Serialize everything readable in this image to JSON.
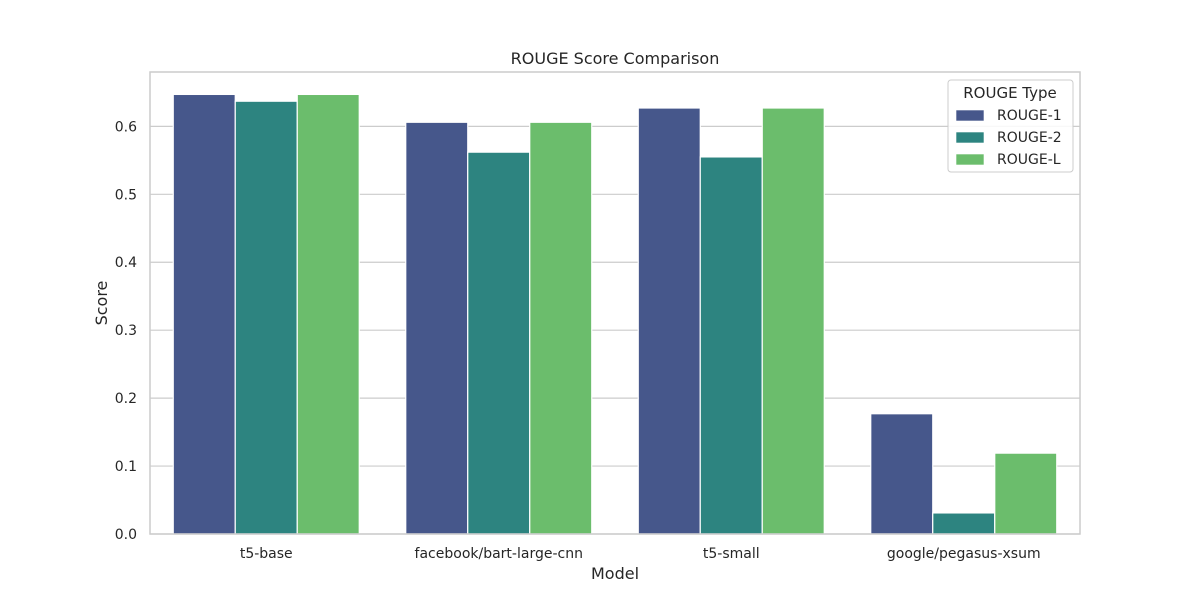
{
  "chart_data": {
    "type": "bar",
    "title": "ROUGE Score Comparison",
    "xlabel": "Model",
    "ylabel": "Score",
    "categories": [
      "t5-base",
      "facebook/bart-large-cnn",
      "t5-small",
      "google/pegasus-xsum"
    ],
    "series": [
      {
        "name": "ROUGE-1",
        "color": "#46578b",
        "values": [
          0.647,
          0.606,
          0.627,
          0.177
        ]
      },
      {
        "name": "ROUGE-2",
        "color": "#2d8480",
        "values": [
          0.637,
          0.562,
          0.555,
          0.031
        ]
      },
      {
        "name": "ROUGE-L",
        "color": "#6bbd6c",
        "values": [
          0.647,
          0.606,
          0.627,
          0.119
        ]
      }
    ],
    "ylim": [
      0,
      0.68
    ],
    "yticks": [
      0.0,
      0.1,
      0.2,
      0.3,
      0.4,
      0.5,
      0.6
    ],
    "ytick_labels": [
      "0.0",
      "0.1",
      "0.2",
      "0.3",
      "0.4",
      "0.5",
      "0.6"
    ],
    "grid": true,
    "legend": {
      "title": "ROUGE Type",
      "position": "top-right"
    },
    "colors": {
      "grid": "#cccccc",
      "frame": "#cccccc",
      "text": "#262626"
    }
  }
}
